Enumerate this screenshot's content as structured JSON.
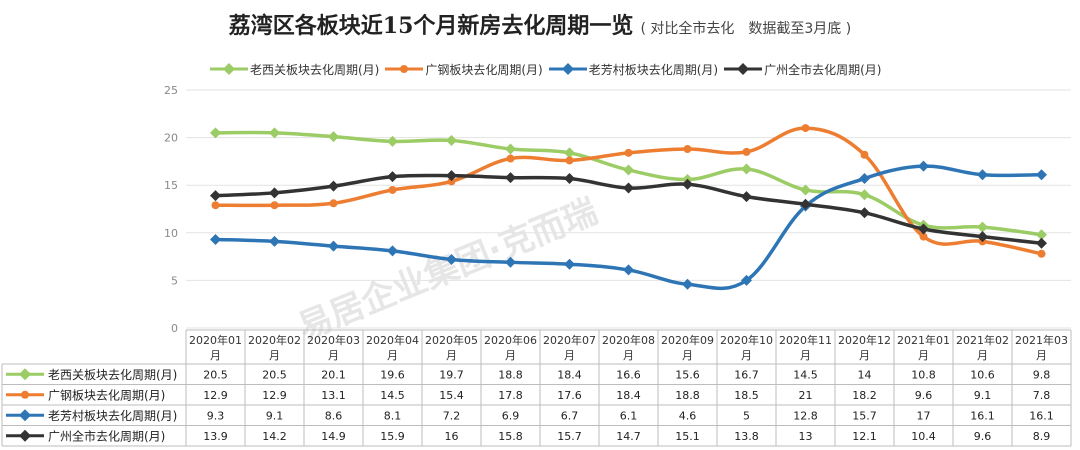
{
  "chart_data": {
    "type": "line",
    "title": "荔湾区各板块近15个月新房去化周期一览",
    "subtitle": "( 对比全市去化　数据截至3月底 )",
    "categories": [
      "2020年01月",
      "2020年02月",
      "2020年03月",
      "2020年04月",
      "2020年05月",
      "2020年06月",
      "2020年07月",
      "2020年08月",
      "2020年09月",
      "2020年10月",
      "2020年11月",
      "2020年12月",
      "2021年01月",
      "2021年02月",
      "2021年03月"
    ],
    "ylim": [
      0,
      25
    ],
    "yticks": [
      0,
      5,
      10,
      15,
      20,
      25
    ],
    "legend_position": "top",
    "series": [
      {
        "name": "老西关板块去化周期(月)",
        "color": "#9ccc65",
        "marker": "diamond",
        "values": [
          20.5,
          20.5,
          20.1,
          19.6,
          19.7,
          18.8,
          18.4,
          16.6,
          15.6,
          16.7,
          14.5,
          14,
          10.8,
          10.6,
          9.8
        ]
      },
      {
        "name": "广钢板块去化周期(月)",
        "color": "#ed7d31",
        "marker": "circle",
        "values": [
          12.9,
          12.9,
          13.1,
          14.5,
          15.4,
          17.8,
          17.6,
          18.4,
          18.8,
          18.5,
          21,
          18.2,
          9.6,
          9.1,
          7.8
        ]
      },
      {
        "name": "老芳村板块去化周期(月)",
        "color": "#2e75b6",
        "marker": "diamond",
        "values": [
          9.3,
          9.1,
          8.6,
          8.1,
          7.2,
          6.9,
          6.7,
          6.1,
          4.6,
          5,
          12.8,
          15.7,
          17,
          16.1,
          16.1
        ]
      },
      {
        "name": "广州全市去化周期(月)",
        "color": "#333333",
        "marker": "diamond",
        "values": [
          13.9,
          14.2,
          14.9,
          15.9,
          16,
          15.8,
          15.7,
          14.7,
          15.1,
          13.8,
          13,
          12.1,
          10.4,
          9.6,
          8.9
        ]
      }
    ]
  },
  "watermark": {
    "text": "易居企业集团·克而瑞"
  }
}
